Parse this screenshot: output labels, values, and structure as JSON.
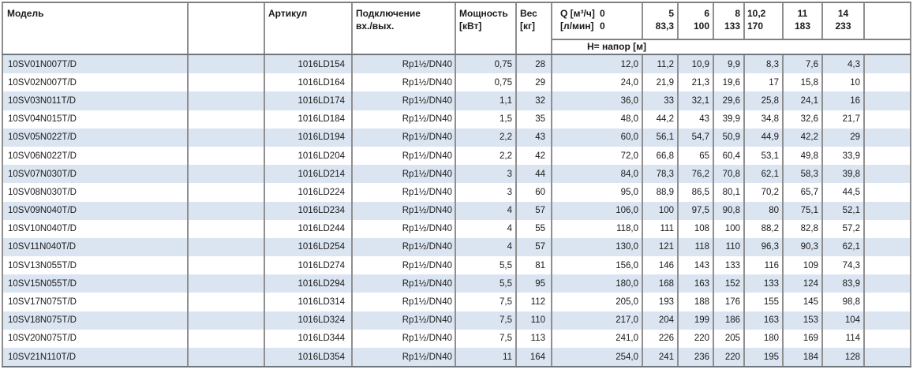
{
  "colors": {
    "stripe": "#dbe5f1",
    "border_vertical": "#8f8f8f",
    "border_horizontal": "#808080",
    "border_heavy": "#6e767c",
    "text": "#1a1a1a"
  },
  "table": {
    "header": {
      "model": "Модель",
      "article": "Артикул",
      "connection": [
        "Подключение",
        "вх./вых."
      ],
      "power": [
        "Мощность",
        "[кВт]"
      ],
      "weight": [
        "Вес",
        "[кг]"
      ],
      "q": {
        "m3h_label": "Q [м³/ч]",
        "m3h_zero": "0",
        "lmin_label": "[л/мин]",
        "lmin_zero": "0"
      },
      "flow_columns": [
        {
          "m3h": "5",
          "lmin": "83,3",
          "align": "right"
        },
        {
          "m3h": "6",
          "lmin": "100",
          "align": "right"
        },
        {
          "m3h": "8",
          "lmin": "133",
          "align": "right"
        },
        {
          "m3h": "10,2",
          "lmin": "170",
          "align": "left"
        },
        {
          "m3h": "11",
          "lmin": "183",
          "align": "center"
        },
        {
          "m3h": "14",
          "lmin": "233",
          "align": "center"
        }
      ],
      "head_label": "H= напор [м]"
    },
    "rows": [
      {
        "model": "10SV01N007T/D",
        "article": "1016LD154",
        "connection": "Rp1½/DN40",
        "power": "0,75",
        "weight": "28",
        "h": [
          "12,0",
          "11,2",
          "10,9",
          "9,9",
          "8,3",
          "7,6",
          "4,3"
        ]
      },
      {
        "model": "10SV02N007T/D",
        "article": "1016LD164",
        "connection": "Rp1½/DN40",
        "power": "0,75",
        "weight": "29",
        "h": [
          "24,0",
          "21,9",
          "21,3",
          "19,6",
          "17",
          "15,8",
          "10"
        ]
      },
      {
        "model": "10SV03N011T/D",
        "article": "1016LD174",
        "connection": "Rp1½/DN40",
        "power": "1,1",
        "weight": "32",
        "h": [
          "36,0",
          "33",
          "32,1",
          "29,6",
          "25,8",
          "24,1",
          "16"
        ]
      },
      {
        "model": "10SV04N015T/D",
        "article": "1016LD184",
        "connection": "Rp1½/DN40",
        "power": "1,5",
        "weight": "35",
        "h": [
          "48,0",
          "44,2",
          "43",
          "39,9",
          "34,8",
          "32,6",
          "21,7"
        ]
      },
      {
        "model": "10SV05N022T/D",
        "article": "1016LD194",
        "connection": "Rp1½/DN40",
        "power": "2,2",
        "weight": "43",
        "h": [
          "60,0",
          "56,1",
          "54,7",
          "50,9",
          "44,9",
          "42,2",
          "29"
        ]
      },
      {
        "model": "10SV06N022T/D",
        "article": "1016LD204",
        "connection": "Rp1½/DN40",
        "power": "2,2",
        "weight": "42",
        "h": [
          "72,0",
          "66,8",
          "65",
          "60,4",
          "53,1",
          "49,8",
          "33,9"
        ]
      },
      {
        "model": "10SV07N030T/D",
        "article": "1016LD214",
        "connection": "Rp1½/DN40",
        "power": "3",
        "weight": "44",
        "h": [
          "84,0",
          "78,3",
          "76,2",
          "70,8",
          "62,1",
          "58,3",
          "39,8"
        ]
      },
      {
        "model": "10SV08N030T/D",
        "article": "1016LD224",
        "connection": "Rp1½/DN40",
        "power": "3",
        "weight": "60",
        "h": [
          "95,0",
          "88,9",
          "86,5",
          "80,1",
          "70,2",
          "65,7",
          "44,5"
        ]
      },
      {
        "model": "10SV09N040T/D",
        "article": "1016LD234",
        "connection": "Rp1½/DN40",
        "power": "4",
        "weight": "57",
        "h": [
          "106,0",
          "100",
          "97,5",
          "90,8",
          "80",
          "75,1",
          "52,1"
        ]
      },
      {
        "model": "10SV10N040T/D",
        "article": "1016LD244",
        "connection": "Rp1½/DN40",
        "power": "4",
        "weight": "55",
        "h": [
          "118,0",
          "111",
          "108",
          "100",
          "88,2",
          "82,8",
          "57,2"
        ]
      },
      {
        "model": "10SV11N040T/D",
        "article": "1016LD254",
        "connection": "Rp1½/DN40",
        "power": "4",
        "weight": "57",
        "h": [
          "130,0",
          "121",
          "118",
          "110",
          "96,3",
          "90,3",
          "62,1"
        ]
      },
      {
        "model": "10SV13N055T/D",
        "article": "1016LD274",
        "connection": "Rp1½/DN40",
        "power": "5,5",
        "weight": "81",
        "h": [
          "156,0",
          "146",
          "143",
          "133",
          "116",
          "109",
          "74,3"
        ]
      },
      {
        "model": "10SV15N055T/D",
        "article": "1016LD294",
        "connection": "Rp1½/DN40",
        "power": "5,5",
        "weight": "95",
        "h": [
          "180,0",
          "168",
          "163",
          "152",
          "133",
          "124",
          "83,9"
        ]
      },
      {
        "model": "10SV17N075T/D",
        "article": "1016LD314",
        "connection": "Rp1½/DN40",
        "power": "7,5",
        "weight": "112",
        "h": [
          "205,0",
          "193",
          "188",
          "176",
          "155",
          "145",
          "98,8"
        ]
      },
      {
        "model": "10SV18N075T/D",
        "article": "1016LD324",
        "connection": "Rp1½/DN40",
        "power": "7,5",
        "weight": "110",
        "h": [
          "217,0",
          "204",
          "199",
          "186",
          "163",
          "153",
          "104"
        ]
      },
      {
        "model": "10SV20N075T/D",
        "article": "1016LD344",
        "connection": "Rp1½/DN40",
        "power": "7,5",
        "weight": "113",
        "h": [
          "241,0",
          "226",
          "220",
          "205",
          "180",
          "169",
          "114"
        ]
      },
      {
        "model": "10SV21N110T/D",
        "article": "1016LD354",
        "connection": "Rp1½/DN40",
        "power": "11",
        "weight": "164",
        "h": [
          "254,0",
          "241",
          "236",
          "220",
          "195",
          "184",
          "128"
        ]
      }
    ]
  }
}
